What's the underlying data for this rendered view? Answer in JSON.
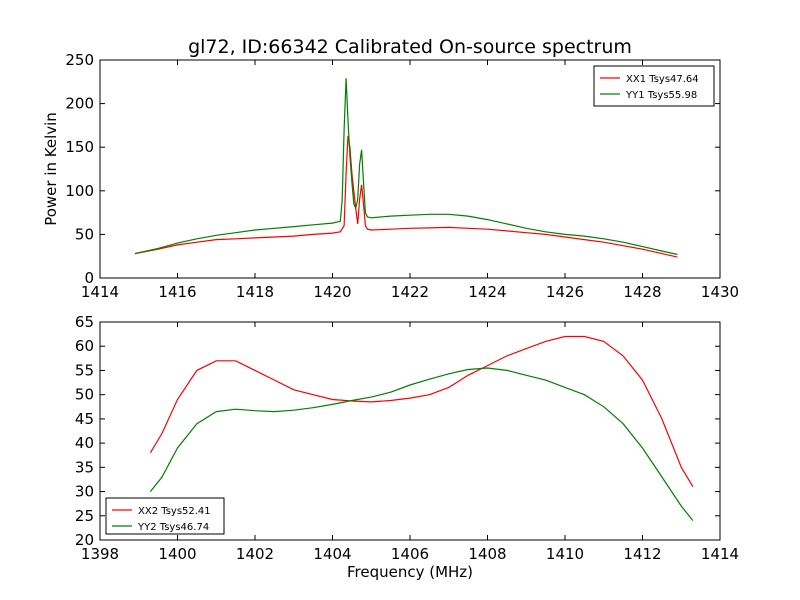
{
  "chart_data": [
    {
      "type": "line",
      "title": "gl72, ID:66342 Calibrated On-source spectrum",
      "xlabel": "",
      "ylabel": "Power in Kelvin",
      "xlim": [
        1414,
        1430
      ],
      "ylim": [
        0,
        250
      ],
      "xticks": [
        1414,
        1416,
        1418,
        1420,
        1422,
        1424,
        1426,
        1428,
        1430
      ],
      "yticks": [
        0,
        50,
        100,
        150,
        200,
        250
      ],
      "grid": false,
      "legend_position": "top-right",
      "series": [
        {
          "name": "XX1 Tsys47.64",
          "color": "#ff0000",
          "points": [
            [
              1414.9,
              28
            ],
            [
              1415.5,
              33
            ],
            [
              1416,
              38
            ],
            [
              1416.5,
              41
            ],
            [
              1417,
              44
            ],
            [
              1417.5,
              45
            ],
            [
              1418,
              46
            ],
            [
              1418.5,
              47
            ],
            [
              1419,
              48
            ],
            [
              1419.5,
              50
            ],
            [
              1420,
              51.5
            ],
            [
              1420.2,
              53
            ],
            [
              1420.3,
              60
            ],
            [
              1420.35,
              120
            ],
            [
              1420.4,
              163
            ],
            [
              1420.45,
              150
            ],
            [
              1420.5,
              120
            ],
            [
              1420.55,
              100
            ],
            [
              1420.6,
              80
            ],
            [
              1420.65,
              62
            ],
            [
              1420.7,
              90
            ],
            [
              1420.75,
              107
            ],
            [
              1420.8,
              85
            ],
            [
              1420.85,
              60
            ],
            [
              1420.9,
              56
            ],
            [
              1421,
              55
            ],
            [
              1421.5,
              56
            ],
            [
              1422,
              57
            ],
            [
              1422.5,
              57.5
            ],
            [
              1423,
              58
            ],
            [
              1423.5,
              57
            ],
            [
              1424,
              56
            ],
            [
              1424.5,
              54
            ],
            [
              1425,
              52
            ],
            [
              1425.5,
              50
            ],
            [
              1426,
              47
            ],
            [
              1426.5,
              44
            ],
            [
              1427,
              41
            ],
            [
              1427.5,
              37
            ],
            [
              1428,
              33
            ],
            [
              1428.5,
              28
            ],
            [
              1428.9,
              24
            ]
          ]
        },
        {
          "name": "YY1 Tsys55.98",
          "color": "#008000",
          "points": [
            [
              1414.9,
              28
            ],
            [
              1415.5,
              34
            ],
            [
              1416,
              40
            ],
            [
              1416.5,
              45
            ],
            [
              1417,
              49
            ],
            [
              1417.5,
              52
            ],
            [
              1418,
              55
            ],
            [
              1418.5,
              57
            ],
            [
              1419,
              59
            ],
            [
              1419.5,
              61
            ],
            [
              1420,
              63
            ],
            [
              1420.2,
              65
            ],
            [
              1420.25,
              90
            ],
            [
              1420.3,
              170
            ],
            [
              1420.35,
              229
            ],
            [
              1420.4,
              180
            ],
            [
              1420.45,
              140
            ],
            [
              1420.5,
              110
            ],
            [
              1420.55,
              85
            ],
            [
              1420.6,
              80
            ],
            [
              1420.65,
              90
            ],
            [
              1420.7,
              130
            ],
            [
              1420.75,
              147
            ],
            [
              1420.8,
              110
            ],
            [
              1420.85,
              75
            ],
            [
              1420.9,
              70
            ],
            [
              1421,
              69
            ],
            [
              1421.5,
              71
            ],
            [
              1422,
              72
            ],
            [
              1422.5,
              73
            ],
            [
              1423,
              73
            ],
            [
              1423.5,
              71
            ],
            [
              1424,
              67
            ],
            [
              1424.5,
              62
            ],
            [
              1425,
              57
            ],
            [
              1425.5,
              53
            ],
            [
              1426,
              50
            ],
            [
              1426.5,
              48
            ],
            [
              1427,
              45
            ],
            [
              1427.5,
              41
            ],
            [
              1428,
              36
            ],
            [
              1428.5,
              31
            ],
            [
              1428.9,
              27
            ]
          ]
        }
      ]
    },
    {
      "type": "line",
      "title": "",
      "xlabel": "Frequency (MHz)",
      "ylabel": "",
      "xlim": [
        1398,
        1414
      ],
      "ylim": [
        20,
        65
      ],
      "xticks": [
        1398,
        1400,
        1402,
        1404,
        1406,
        1408,
        1410,
        1412,
        1414
      ],
      "yticks": [
        20,
        25,
        30,
        35,
        40,
        45,
        50,
        55,
        60,
        65
      ],
      "grid": false,
      "legend_position": "bottom-left",
      "series": [
        {
          "name": "XX2 Tsys52.41",
          "color": "#ff0000",
          "points": [
            [
              1399.3,
              38
            ],
            [
              1399.6,
              42
            ],
            [
              1400,
              49
            ],
            [
              1400.5,
              55
            ],
            [
              1401,
              57
            ],
            [
              1401.5,
              57
            ],
            [
              1402,
              55
            ],
            [
              1402.5,
              53
            ],
            [
              1403,
              51
            ],
            [
              1403.5,
              50
            ],
            [
              1404,
              49
            ],
            [
              1404.5,
              48.7
            ],
            [
              1405,
              48.5
            ],
            [
              1405.5,
              48.8
            ],
            [
              1406,
              49.3
            ],
            [
              1406.5,
              50
            ],
            [
              1407,
              51.5
            ],
            [
              1407.5,
              54
            ],
            [
              1408,
              56
            ],
            [
              1408.5,
              58
            ],
            [
              1409,
              59.5
            ],
            [
              1409.5,
              61
            ],
            [
              1410,
              62
            ],
            [
              1410.5,
              62
            ],
            [
              1411,
              61
            ],
            [
              1411.5,
              58
            ],
            [
              1412,
              53
            ],
            [
              1412.5,
              45
            ],
            [
              1413,
              35
            ],
            [
              1413.3,
              31
            ]
          ]
        },
        {
          "name": "YY2 Tsys46.74",
          "color": "#008000",
          "points": [
            [
              1399.3,
              30
            ],
            [
              1399.6,
              33
            ],
            [
              1400,
              39
            ],
            [
              1400.5,
              44
            ],
            [
              1401,
              46.5
            ],
            [
              1401.5,
              47
            ],
            [
              1402,
              46.7
            ],
            [
              1402.5,
              46.5
            ],
            [
              1403,
              46.8
            ],
            [
              1403.5,
              47.3
            ],
            [
              1404,
              48
            ],
            [
              1404.5,
              48.8
            ],
            [
              1405,
              49.5
            ],
            [
              1405.5,
              50.5
            ],
            [
              1406,
              52
            ],
            [
              1406.5,
              53.2
            ],
            [
              1407,
              54.3
            ],
            [
              1407.5,
              55.2
            ],
            [
              1408,
              55.5
            ],
            [
              1408.5,
              55
            ],
            [
              1409,
              54
            ],
            [
              1409.5,
              53
            ],
            [
              1410,
              51.5
            ],
            [
              1410.5,
              50
            ],
            [
              1411,
              47.5
            ],
            [
              1411.5,
              44
            ],
            [
              1412,
              39
            ],
            [
              1412.5,
              33
            ],
            [
              1413,
              27
            ],
            [
              1413.3,
              24
            ]
          ]
        }
      ]
    }
  ]
}
